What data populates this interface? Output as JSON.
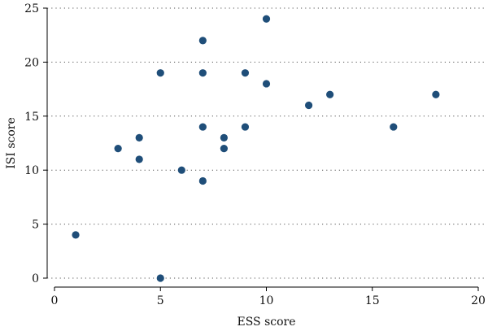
{
  "chart_data": {
    "type": "scatter",
    "title": "",
    "xlabel": "ESS score",
    "ylabel": "ISI score",
    "xlim": [
      0,
      20
    ],
    "ylim": [
      0,
      25
    ],
    "xticks": [
      0,
      5,
      10,
      15,
      20
    ],
    "yticks": [
      0,
      5,
      10,
      15,
      20,
      25
    ],
    "grid": "horizontal-dotted",
    "marker_color": "#1f4e79",
    "points": [
      {
        "x": 1,
        "y": 4
      },
      {
        "x": 3,
        "y": 12
      },
      {
        "x": 4,
        "y": 13
      },
      {
        "x": 4,
        "y": 11
      },
      {
        "x": 5,
        "y": 19
      },
      {
        "x": 5,
        "y": 0
      },
      {
        "x": 6,
        "y": 10
      },
      {
        "x": 7,
        "y": 22
      },
      {
        "x": 7,
        "y": 19
      },
      {
        "x": 7,
        "y": 14
      },
      {
        "x": 7,
        "y": 9
      },
      {
        "x": 8,
        "y": 13
      },
      {
        "x": 8,
        "y": 12
      },
      {
        "x": 9,
        "y": 19
      },
      {
        "x": 9,
        "y": 14
      },
      {
        "x": 10,
        "y": 24
      },
      {
        "x": 10,
        "y": 18
      },
      {
        "x": 12,
        "y": 16
      },
      {
        "x": 13,
        "y": 17
      },
      {
        "x": 16,
        "y": 14
      },
      {
        "x": 18,
        "y": 17
      }
    ]
  }
}
